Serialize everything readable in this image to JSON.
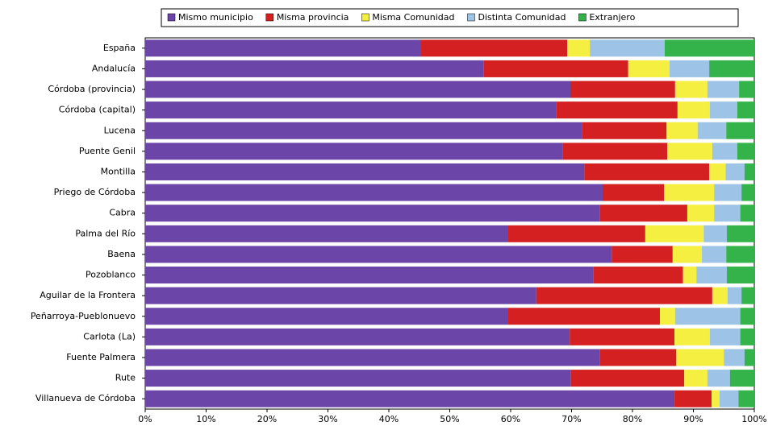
{
  "chart_data": {
    "type": "stacked-barh",
    "categories": [
      "España",
      "Andalucía",
      "Córdoba (provincia)",
      "Córdoba (capital)",
      "Lucena",
      "Puente Genil",
      "Montilla",
      "Priego de Córdoba",
      "Cabra",
      "Palma del Río",
      "Baena",
      "Pozoblanco",
      "Aguilar de la Frontera",
      "Peñarroya-Pueblonuevo",
      "Carlota (La)",
      "Fuente Palmera",
      "Rute",
      "Villanueva de Córdoba"
    ],
    "series": [
      {
        "name": "Mismo municipio",
        "color": "#6b46a8",
        "values": [
          45.3,
          55.6,
          69.8,
          67.5,
          71.7,
          68.5,
          72.1,
          75.1,
          74.6,
          59.6,
          76.6,
          73.6,
          64.2,
          59.6,
          69.7,
          74.6,
          69.9,
          86.9
        ]
      },
      {
        "name": "Misma provincia",
        "color": "#d42020",
        "values": [
          24.0,
          23.7,
          17.2,
          19.9,
          13.9,
          17.2,
          20.5,
          10.1,
          14.4,
          22.5,
          10.0,
          14.7,
          28.9,
          24.9,
          17.2,
          12.6,
          18.6,
          6.1
        ]
      },
      {
        "name": "Misma Comunidad",
        "color": "#f5ef42",
        "values": [
          3.7,
          6.8,
          5.3,
          5.3,
          5.1,
          7.4,
          2.7,
          8.2,
          4.4,
          9.6,
          4.8,
          2.2,
          2.5,
          2.5,
          5.8,
          7.8,
          3.8,
          1.3
        ]
      },
      {
        "name": "Distinta Comunidad",
        "color": "#9dc3e6",
        "values": [
          12.3,
          6.5,
          5.2,
          4.5,
          4.7,
          4.1,
          3.1,
          4.5,
          4.3,
          3.8,
          4.0,
          5.0,
          2.3,
          10.7,
          5.0,
          3.4,
          3.7,
          3.1
        ]
      },
      {
        "name": "Extranjero",
        "color": "#33b34a",
        "values": [
          14.7,
          7.4,
          2.5,
          2.8,
          4.6,
          2.8,
          1.6,
          2.1,
          2.3,
          4.5,
          4.6,
          4.5,
          2.1,
          2.3,
          2.3,
          1.6,
          4.0,
          2.6
        ]
      }
    ],
    "xlim": [
      0,
      100
    ],
    "xticks": [
      {
        "value": 0,
        "label": "0%"
      },
      {
        "value": 10,
        "label": "10%"
      },
      {
        "value": 20,
        "label": "20%"
      },
      {
        "value": 30,
        "label": "30%"
      },
      {
        "value": 40,
        "label": "40%"
      },
      {
        "value": 50,
        "label": "50%"
      },
      {
        "value": 60,
        "label": "60%"
      },
      {
        "value": 70,
        "label": "70%"
      },
      {
        "value": 80,
        "label": "80%"
      },
      {
        "value": 90,
        "label": "90%"
      },
      {
        "value": 100,
        "label": "100%"
      }
    ],
    "legend": "top"
  }
}
